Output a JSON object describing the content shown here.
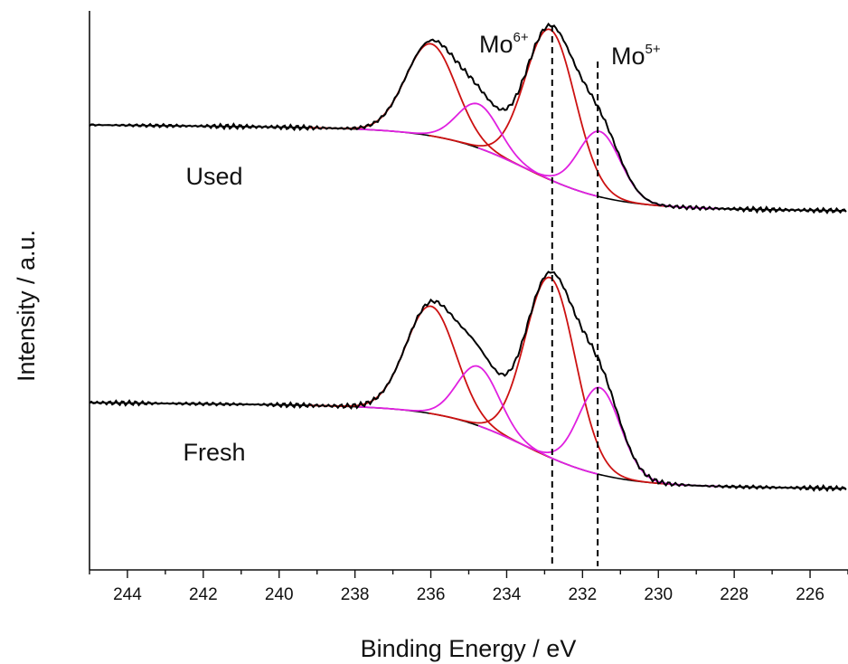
{
  "chart_data": {
    "type": "line",
    "xlabel": "Binding Energy / eV",
    "ylabel": "Intensity / a.u.",
    "xlim": [
      245,
      225
    ],
    "x_reversed": true,
    "x_ticks": [
      244,
      242,
      240,
      238,
      236,
      234,
      232,
      230,
      228,
      226
    ],
    "y_ticks_shown": false,
    "colors": {
      "envelope": "#000000",
      "mo6_component": "#cc1111",
      "mo5_component": "#e020e0",
      "reference_line": "#000000"
    },
    "reference_lines": [
      {
        "x": 232.8,
        "label": "Mo",
        "superscript": "6+"
      },
      {
        "x": 231.6,
        "label": "Mo",
        "superscript": "5+"
      }
    ],
    "panels": [
      {
        "name": "Used",
        "baseline_range": [
          0.92,
          0.16
        ],
        "components": [
          {
            "center": 236.0,
            "amplitude": 0.9,
            "fwhm": 1.55,
            "color": "mo6_component"
          },
          {
            "center": 232.85,
            "amplitude": 1.47,
            "fwhm": 1.55,
            "color": "mo6_component"
          },
          {
            "center": 234.75,
            "amplitude": 0.43,
            "fwhm": 1.3,
            "color": "mo5_component"
          },
          {
            "center": 231.55,
            "amplitude": 0.64,
            "fwhm": 1.3,
            "color": "mo5_component"
          }
        ]
      },
      {
        "name": "Fresh",
        "baseline_range": [
          0.92,
          0.16
        ],
        "components": [
          {
            "center": 236.0,
            "amplitude": 1.05,
            "fwhm": 1.55,
            "color": "mo6_component"
          },
          {
            "center": 232.85,
            "amplitude": 1.76,
            "fwhm": 1.55,
            "color": "mo6_component"
          },
          {
            "center": 234.75,
            "amplitude": 0.58,
            "fwhm": 1.3,
            "color": "mo5_component"
          },
          {
            "center": 231.55,
            "amplitude": 0.85,
            "fwhm": 1.3,
            "color": "mo5_component"
          }
        ]
      }
    ]
  }
}
